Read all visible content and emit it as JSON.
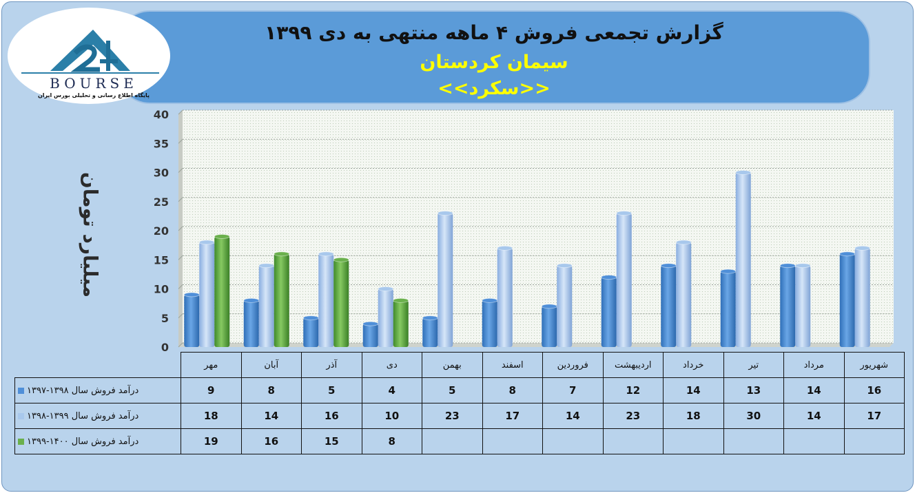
{
  "header": {
    "title": "گزارش تجمعی فروش ۴ ماهه منتهی به دی ۱۳۹۹",
    "subtitle": "سیمان کردستان",
    "company": "<<سکرد>>"
  },
  "logo": {
    "word": "BOURSE",
    "tagline": "پایگاه اطلاع رسانی و تحلیلی بورس ایران"
  },
  "chart_data": {
    "type": "bar",
    "title": "گزارش تجمعی فروش ۴ ماهه منتهی به دی ۱۳۹۹",
    "xlabel": "",
    "ylabel": "میلیارد تومان",
    "ylim": [
      0,
      40
    ],
    "yticks": [
      0,
      5,
      10,
      15,
      20,
      25,
      30,
      35,
      40
    ],
    "grid": true,
    "legend": "data-table",
    "categories": [
      "مهر",
      "آبان",
      "آذر",
      "دی",
      "بهمن",
      "اسفند",
      "فروردین",
      "اردیبهشت",
      "خرداد",
      "تیر",
      "مرداد",
      "شهریور"
    ],
    "series": [
      {
        "name": "درآمد فروش سال ۱۳۹۸-۱۳۹۷",
        "color": "#4f8fd8",
        "values": [
          9,
          8,
          5,
          4,
          5,
          8,
          7,
          12,
          14,
          13,
          14,
          16
        ]
      },
      {
        "name": "درآمد فروش سال ۱۳۹۹-۱۳۹۸",
        "color": "#a8c8ec",
        "values": [
          18,
          14,
          16,
          10,
          23,
          17,
          14,
          23,
          18,
          30,
          14,
          17
        ]
      },
      {
        "name": "درآمد فروش سال ۱۴۰۰-۱۳۹۹",
        "color": "#6ab04c",
        "values": [
          19,
          16,
          15,
          8,
          null,
          null,
          null,
          null,
          null,
          null,
          null,
          null
        ]
      }
    ]
  }
}
